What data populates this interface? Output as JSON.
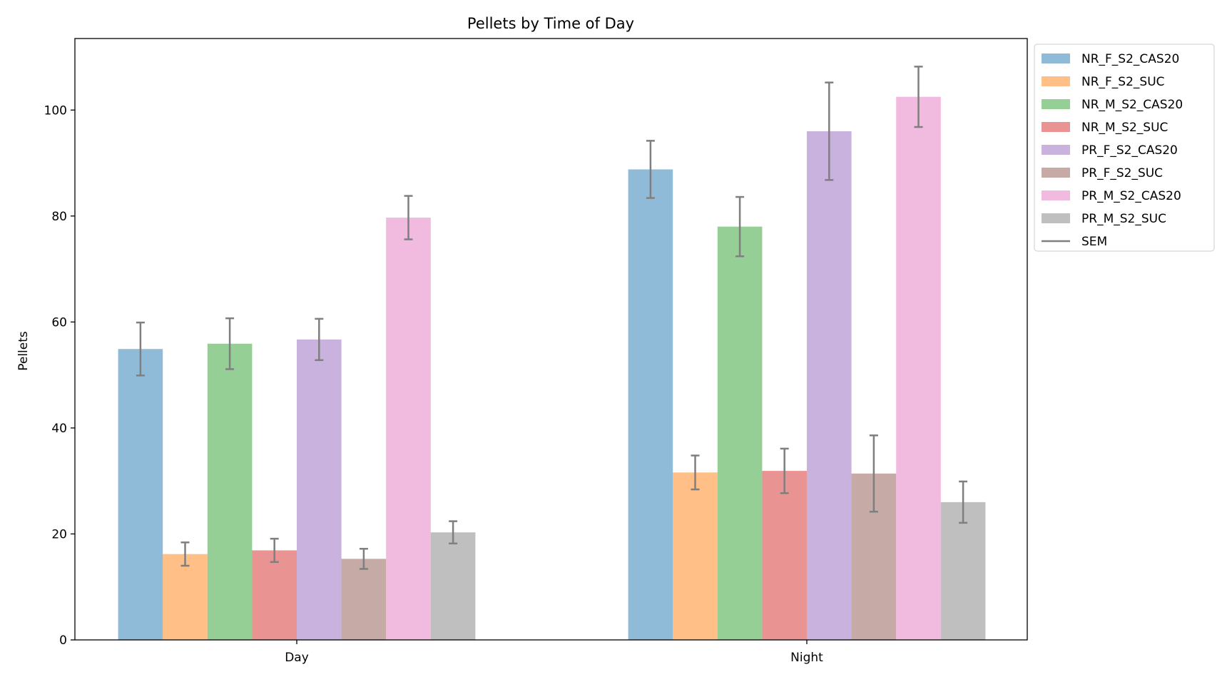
{
  "chart_data": {
    "type": "bar",
    "title": "Pellets by Time of Day",
    "xlabel": "",
    "ylabel": "Pellets",
    "ylim": [
      0,
      113.5
    ],
    "yticks": [
      0,
      20,
      40,
      60,
      80,
      100
    ],
    "categories": [
      "Day",
      "Night"
    ],
    "grid": false,
    "legend_position": "outside-top-right",
    "error_label": "SEM",
    "error_color": "#7f7f7f",
    "series": [
      {
        "name": "NR_F_S2_CAS20",
        "color": "#1f77b4",
        "values": [
          54.9,
          88.8
        ],
        "errors": [
          5.0,
          5.4
        ]
      },
      {
        "name": "NR_F_S2_SUC",
        "color": "#ff7f0e",
        "values": [
          16.2,
          31.6
        ],
        "errors": [
          2.2,
          3.2
        ]
      },
      {
        "name": "NR_M_S2_CAS20",
        "color": "#2ca02c",
        "values": [
          55.9,
          78.0
        ],
        "errors": [
          4.8,
          5.6
        ]
      },
      {
        "name": "NR_M_S2_SUC",
        "color": "#d62728",
        "values": [
          16.9,
          31.9
        ],
        "errors": [
          2.2,
          4.2
        ]
      },
      {
        "name": "PR_F_S2_CAS20",
        "color": "#9467bd",
        "values": [
          56.7,
          96.0
        ],
        "errors": [
          3.9,
          9.2
        ]
      },
      {
        "name": "PR_F_S2_SUC",
        "color": "#8c564b",
        "values": [
          15.3,
          31.4
        ],
        "errors": [
          1.9,
          7.2
        ]
      },
      {
        "name": "PR_M_S2_CAS20",
        "color": "#e377c2",
        "values": [
          79.7,
          102.5
        ],
        "errors": [
          4.1,
          5.7
        ]
      },
      {
        "name": "PR_M_S2_SUC",
        "color": "#7f7f7f",
        "values": [
          20.3,
          26.0
        ],
        "errors": [
          2.1,
          3.9
        ]
      }
    ]
  }
}
